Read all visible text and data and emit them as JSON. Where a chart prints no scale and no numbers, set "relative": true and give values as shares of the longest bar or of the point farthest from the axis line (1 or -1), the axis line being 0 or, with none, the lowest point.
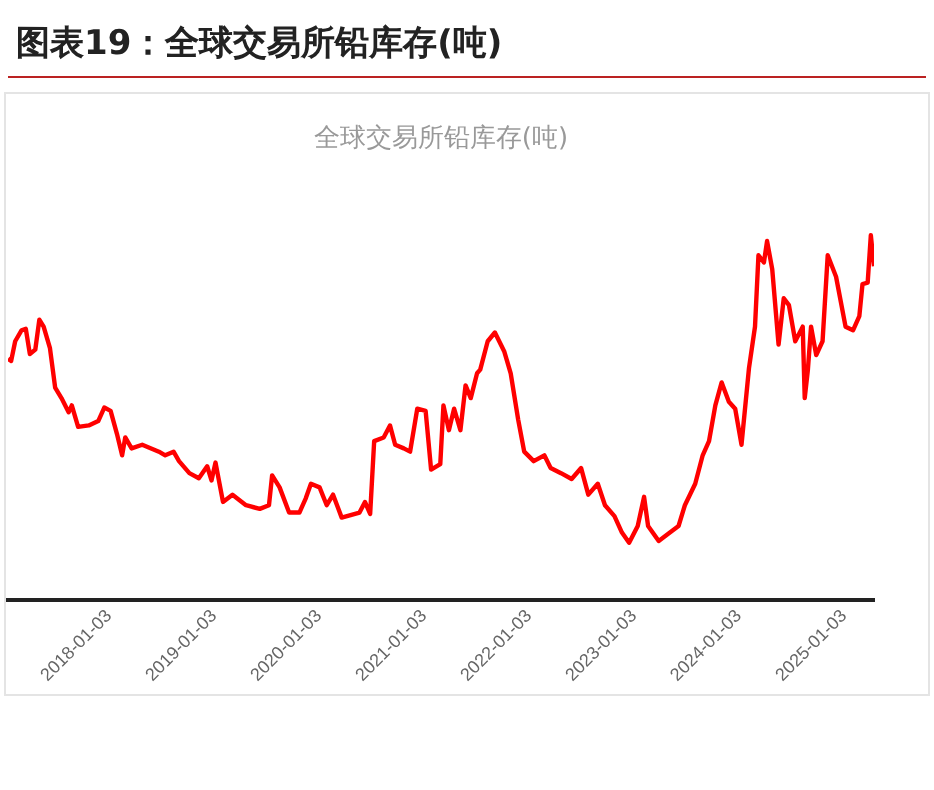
{
  "chart_data": {
    "type": "line",
    "title": "图表19：全球交易所铅库存(吨)",
    "subtitle": "全球交易所铅库存(吨)",
    "relative": true,
    "legend": false,
    "grid": false,
    "marker": "none",
    "xlim": [
      "2017-01-16",
      "2025-04-17"
    ],
    "xticks": [
      "2018-01-03",
      "2019-01-03",
      "2020-01-03",
      "2021-01-03",
      "2022-01-03",
      "2023-01-03",
      "2024-01-03",
      "2025-01-03"
    ],
    "series": [
      {
        "color": "#ff0000",
        "x": [
          "2017-01-16",
          "2017-01-27",
          "2017-02-10",
          "2017-03-04",
          "2017-03-19",
          "2017-04-02",
          "2017-04-21",
          "2017-05-05",
          "2017-05-20",
          "2017-06-11",
          "2017-06-29",
          "2017-07-21",
          "2017-08-15",
          "2017-08-26",
          "2017-09-17",
          "2017-10-24",
          "2017-11-26",
          "2017-12-17",
          "2018-01-08",
          "2018-01-30",
          "2018-02-17",
          "2018-02-28",
          "2018-03-22",
          "2018-04-28",
          "2018-06-25",
          "2018-07-17",
          "2018-08-15",
          "2018-09-03",
          "2018-10-09",
          "2018-11-11",
          "2018-12-10",
          "2018-12-25",
          "2019-01-08",
          "2019-02-03",
          "2019-03-08",
          "2019-04-24",
          "2019-06-11",
          "2019-07-13",
          "2019-07-24",
          "2019-08-19",
          "2019-09-21",
          "2019-10-27",
          "2019-11-18",
          "2019-12-06",
          "2020-01-05",
          "2020-01-30",
          "2020-02-21",
          "2020-03-22",
          "2020-05-23",
          "2020-06-11",
          "2020-06-29",
          "2020-07-13",
          "2020-08-15",
          "2020-09-06",
          "2020-09-24",
          "2020-10-24",
          "2020-11-15",
          "2020-12-10",
          "2021-01-08",
          "2021-01-27",
          "2021-02-28",
          "2021-03-11",
          "2021-03-30",
          "2021-04-17",
          "2021-05-09",
          "2021-05-27",
          "2021-06-14",
          "2021-07-06",
          "2021-07-17",
          "2021-08-12",
          "2021-09-06",
          "2021-10-09",
          "2021-10-31",
          "2021-11-26",
          "2021-12-17",
          "2022-01-19",
          "2022-02-25",
          "2022-03-19",
          "2022-04-24",
          "2022-05-31",
          "2022-07-03",
          "2022-07-28",
          "2022-08-30",
          "2022-09-24",
          "2022-10-27",
          "2022-11-22",
          "2022-12-17",
          "2023-01-16",
          "2023-02-07",
          "2023-02-21",
          "2023-03-30",
          "2023-05-01",
          "2023-06-07",
          "2023-06-29",
          "2023-08-04",
          "2023-08-30",
          "2023-09-21",
          "2023-10-13",
          "2023-11-04",
          "2023-11-29",
          "2023-12-21",
          "2024-01-12",
          "2024-02-07",
          "2024-02-28",
          "2024-03-11",
          "2024-03-30",
          "2024-04-10",
          "2024-04-28",
          "2024-05-20",
          "2024-06-07",
          "2024-06-25",
          "2024-07-17",
          "2024-08-12",
          "2024-08-19",
          "2024-08-30",
          "2024-09-10",
          "2024-09-28",
          "2024-10-20",
          "2024-11-07",
          "2024-12-06",
          "2025-01-08",
          "2025-02-03",
          "2025-02-25",
          "2025-03-08",
          "2025-03-26",
          "2025-04-06",
          "2025-04-17"
        ],
        "values": [
          0.661,
          0.655,
          0.709,
          0.739,
          0.743,
          0.674,
          0.686,
          0.768,
          0.749,
          0.69,
          0.582,
          0.553,
          0.514,
          0.533,
          0.474,
          0.478,
          0.49,
          0.527,
          0.518,
          0.455,
          0.396,
          0.445,
          0.415,
          0.425,
          0.406,
          0.396,
          0.406,
          0.38,
          0.347,
          0.333,
          0.366,
          0.327,
          0.376,
          0.268,
          0.288,
          0.259,
          0.249,
          0.259,
          0.341,
          0.308,
          0.239,
          0.239,
          0.278,
          0.318,
          0.308,
          0.259,
          0.288,
          0.225,
          0.239,
          0.268,
          0.235,
          0.435,
          0.445,
          0.478,
          0.425,
          0.415,
          0.406,
          0.524,
          0.518,
          0.357,
          0.372,
          0.533,
          0.465,
          0.524,
          0.465,
          0.588,
          0.553,
          0.621,
          0.631,
          0.709,
          0.733,
          0.68,
          0.621,
          0.494,
          0.406,
          0.38,
          0.396,
          0.361,
          0.347,
          0.331,
          0.361,
          0.288,
          0.318,
          0.259,
          0.229,
          0.184,
          0.156,
          0.202,
          0.282,
          0.202,
          0.161,
          0.18,
          0.202,
          0.259,
          0.318,
          0.396,
          0.435,
          0.533,
          0.596,
          0.543,
          0.524,
          0.425,
          0.635,
          0.749,
          0.945,
          0.925,
          0.984,
          0.906,
          0.7,
          0.827,
          0.808,
          0.709,
          0.749,
          0.553,
          0.631,
          0.749,
          0.671,
          0.709,
          0.945,
          0.886,
          0.749,
          0.739,
          0.778,
          0.866,
          0.87,
          1.0,
          0.915
        ]
      }
    ]
  }
}
